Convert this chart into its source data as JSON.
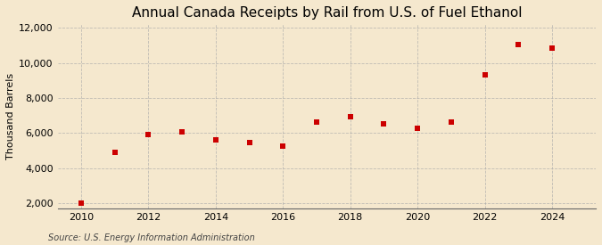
{
  "title": "Annual Canada Receipts by Rail from U.S. of Fuel Ethanol",
  "ylabel": "Thousand Barrels",
  "source": "Source: U.S. Energy Information Administration",
  "years": [
    2010,
    2011,
    2012,
    2013,
    2014,
    2015,
    2016,
    2017,
    2018,
    2019,
    2020,
    2021,
    2022,
    2023,
    2024
  ],
  "values": [
    2000,
    4900,
    5900,
    6050,
    5600,
    5450,
    5250,
    6650,
    6950,
    6500,
    6250,
    6650,
    9300,
    11050,
    10850
  ],
  "marker_color": "#cc0000",
  "marker_size": 5,
  "ylim": [
    1700,
    12200
  ],
  "yticks": [
    2000,
    4000,
    6000,
    8000,
    10000,
    12000
  ],
  "xlim": [
    2009.3,
    2025.3
  ],
  "xticks": [
    2010,
    2012,
    2014,
    2016,
    2018,
    2020,
    2022,
    2024
  ],
  "bg_color": "#f5e8ce",
  "plot_bg_color": "#f5e8ce",
  "grid_color": "#aaaaaa",
  "title_fontsize": 11,
  "label_fontsize": 8,
  "tick_fontsize": 8,
  "source_fontsize": 7
}
